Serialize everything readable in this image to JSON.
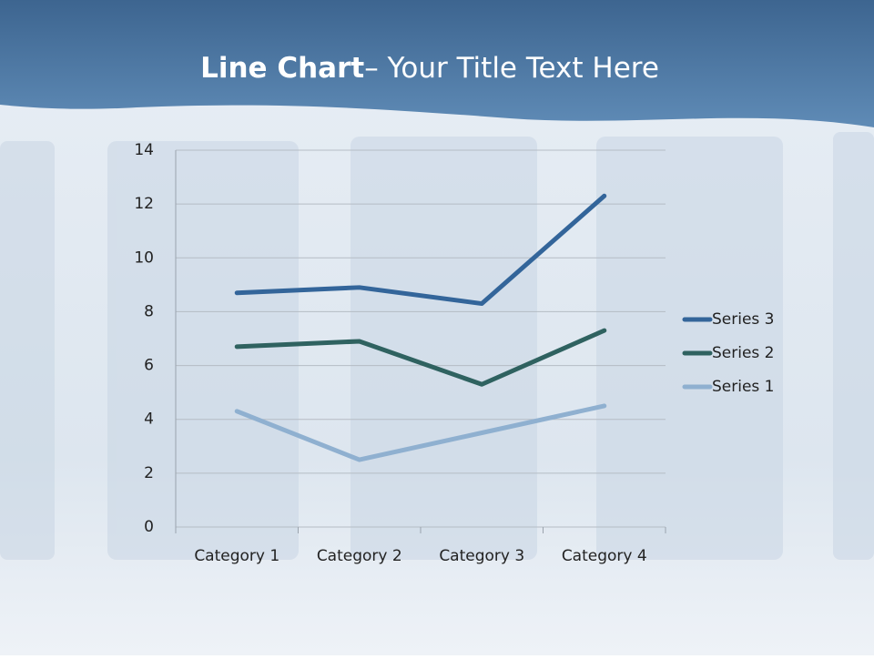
{
  "chart_data": {
    "type": "line",
    "title": "Line Chart",
    "title_rest": "– Your Title Text Here",
    "categories": [
      "Category 1",
      "Category 2",
      "Category 3",
      "Category 4"
    ],
    "series": [
      {
        "name": "Series 1",
        "color": "#8fb0d0",
        "values": [
          4.3,
          2.5,
          3.5,
          4.5
        ]
      },
      {
        "name": "Series 2",
        "color": "#2f6260",
        "values": [
          6.7,
          6.9,
          5.3,
          7.3
        ]
      },
      {
        "name": "Series 3",
        "color": "#33659a",
        "values": [
          8.7,
          8.9,
          8.3,
          12.3
        ]
      }
    ],
    "ylim": [
      0,
      14
    ],
    "yticks": [
      0,
      2,
      4,
      6,
      8,
      10,
      12,
      14
    ],
    "grid": true,
    "legend": "right"
  }
}
